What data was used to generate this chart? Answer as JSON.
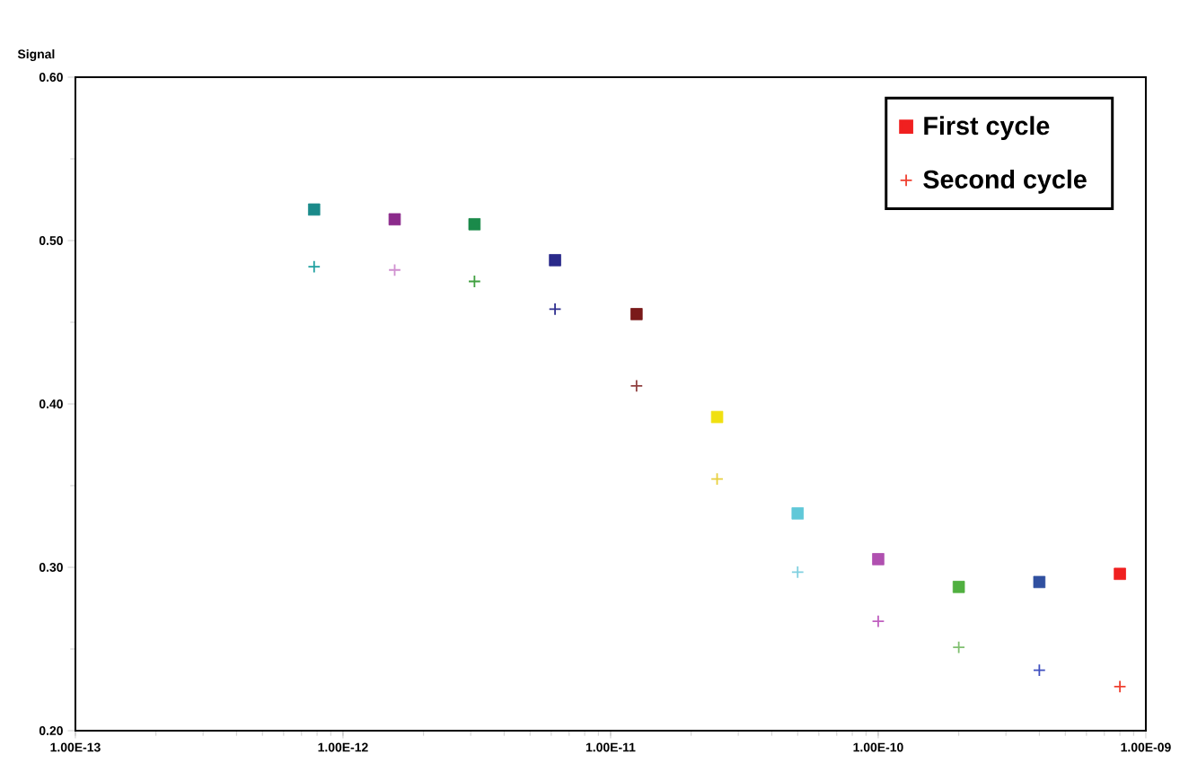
{
  "chart_data": {
    "type": "scatter",
    "ylabel": "Signal",
    "x": [
      7.8e-13,
      1.56e-12,
      3.1e-12,
      6.2e-12,
      1.25e-11,
      2.5e-11,
      5e-11,
      1e-10,
      2e-10,
      4e-10,
      8e-10
    ],
    "series": [
      {
        "name": "First cycle",
        "color": "#f02020",
        "marker": "square",
        "values": [
          0.519,
          0.513,
          0.51,
          0.488,
          0.455,
          0.392,
          0.333,
          0.305,
          0.288,
          0.291,
          0.296
        ],
        "colors": [
          "#1a8a8a",
          "#8b2a8b",
          "#1a8a4a",
          "#2a2a8a",
          "#7a1a1a",
          "#f0e010",
          "#60c8d8",
          "#b050b0",
          "#50b040",
          "#3050a0",
          "#f02020"
        ]
      },
      {
        "name": "Second cycle",
        "color": "#f04030",
        "marker": "cross",
        "values": [
          0.484,
          0.482,
          0.475,
          0.458,
          0.411,
          0.354,
          0.297,
          0.267,
          0.251,
          0.237,
          0.227
        ],
        "colors": [
          "#20a0a0",
          "#d090d0",
          "#40a040",
          "#303090",
          "#904040",
          "#e8d040",
          "#80d0e0",
          "#c060c0",
          "#80c070",
          "#4050c0",
          "#f04030"
        ]
      }
    ],
    "log": "x",
    "xlim": [
      1e-13,
      1e-09
    ],
    "ylim": [
      0.2,
      0.6
    ],
    "xticks": [
      {
        "value": 1e-13,
        "label": "1.00E-13"
      },
      {
        "value": 1e-12,
        "label": "1.00E-12"
      },
      {
        "value": 1e-11,
        "label": "1.00E-11"
      },
      {
        "value": 1e-10,
        "label": "1.00E-10"
      },
      {
        "value": 1e-09,
        "label": "1.00E-09"
      }
    ],
    "yticks": [
      {
        "value": 0.2,
        "label": "0.20"
      },
      {
        "value": 0.3,
        "label": "0.30"
      },
      {
        "value": 0.4,
        "label": "0.40"
      },
      {
        "value": 0.5,
        "label": "0.50"
      },
      {
        "value": 0.6,
        "label": "0.60"
      }
    ],
    "grid": false,
    "legend": "top right"
  }
}
